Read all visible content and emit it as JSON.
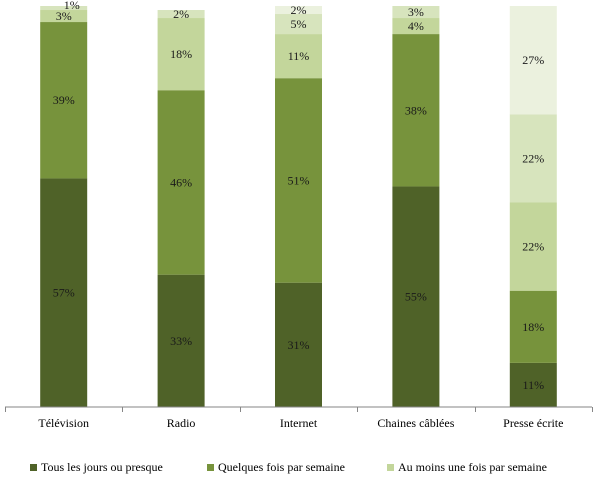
{
  "chart_data": {
    "type": "bar",
    "stacked": true,
    "title": "",
    "xlabel": "",
    "ylabel": "",
    "ylim": [
      0,
      100
    ],
    "categories": [
      "Télévision",
      "Radio",
      "Internet",
      "Chaines câblées",
      "Presse écrite"
    ],
    "series": [
      {
        "name": "Tous les jours ou presque",
        "color": "#4f6228",
        "values": [
          57,
          33,
          31,
          55,
          11
        ],
        "labels": [
          "57%",
          "33%",
          "31%",
          "55%",
          "11%"
        ]
      },
      {
        "name": "Quelques fois par semaine",
        "color": "#77933c",
        "values": [
          39,
          46,
          51,
          38,
          18
        ],
        "labels": [
          "39%",
          "46%",
          "51%",
          "38%",
          "18%"
        ]
      },
      {
        "name": "Au moins une fois par semaine",
        "color": "#c3d69b",
        "values": [
          3,
          18,
          11,
          4,
          22
        ],
        "labels": [
          "3%",
          "18%",
          "11%",
          "4%",
          "22%"
        ]
      },
      {
        "name": "",
        "color": "#d7e4bd",
        "values": [
          1,
          2,
          5,
          3,
          22
        ],
        "labels": [
          "1%",
          "2%",
          "5%",
          "3%",
          "22%"
        ]
      },
      {
        "name": "",
        "color": "#ebf1de",
        "values": [
          0,
          0,
          2,
          0,
          27
        ],
        "labels": [
          "",
          "",
          "2%",
          "",
          "27%"
        ]
      }
    ],
    "legend": {
      "position": "bottom",
      "entries": [
        "Tous les jours ou presque",
        "Quelques fois par semaine",
        "Au moins une fois par semaine"
      ]
    }
  }
}
